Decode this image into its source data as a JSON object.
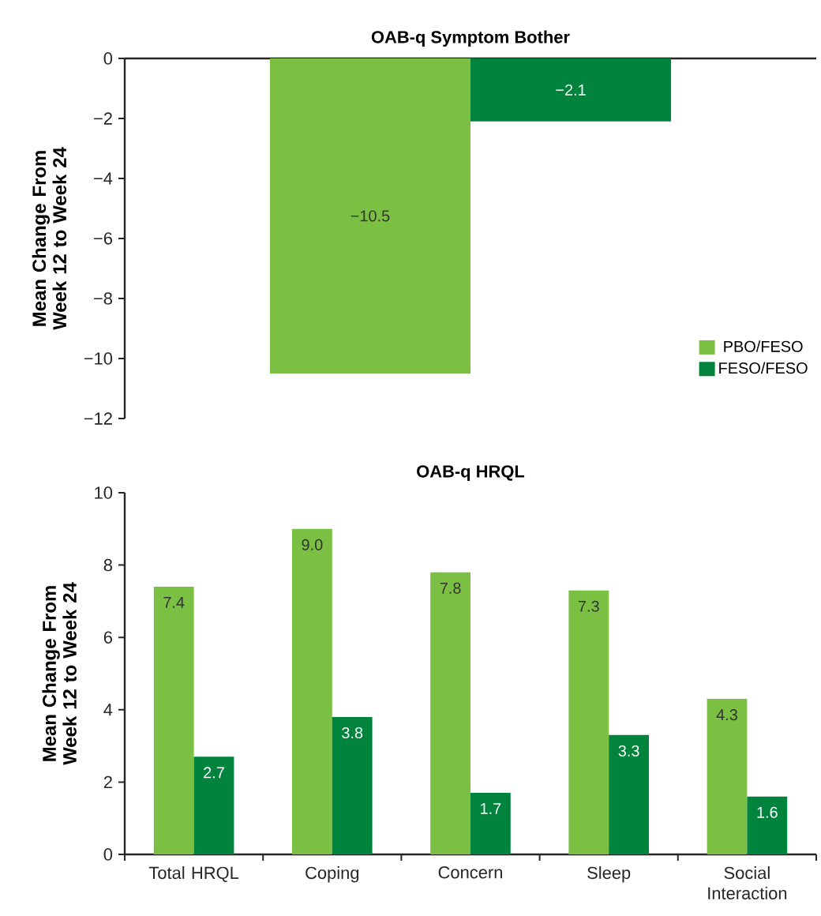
{
  "chart_data": [
    {
      "type": "bar",
      "title": "OAB-q Symptom Bother",
      "ylabel": "Mean Change From Week 12 to Week 24",
      "categories": [
        null
      ],
      "series": [
        {
          "name": "PBO/FESO",
          "color": "#7bc043",
          "values": [
            -10.5
          ],
          "value_labels": [
            "−10.5"
          ]
        },
        {
          "name": "FESO/FESO",
          "color": "#00843d",
          "values": [
            -2.1
          ],
          "value_labels": [
            "−2.1"
          ]
        }
      ],
      "ylim": [
        -12,
        0
      ],
      "yticks": [
        {
          "value": -12,
          "label": "−12"
        },
        {
          "value": -10,
          "label": "−10"
        },
        {
          "value": -8,
          "label": "−8"
        },
        {
          "value": -6,
          "label": "−6"
        },
        {
          "value": -4,
          "label": "−4"
        },
        {
          "value": -2,
          "label": "−2"
        },
        0
      ],
      "legend": "bottom right"
    },
    {
      "type": "bar",
      "title": "OAB-q HRQL",
      "ylabel": "Mean Change From Week 12 to Week 24",
      "categories": [
        "Total HRQL",
        "Coping",
        "Concern",
        "Sleep",
        "Social Interaction"
      ],
      "series": [
        {
          "color": "#7bc043",
          "values": [
            7.4,
            9.0,
            7.8,
            7.3,
            4.3
          ],
          "value_labels": [
            "7.4",
            "9.0",
            "7.8",
            "7.3",
            "4.3"
          ]
        },
        {
          "color": "#00843d",
          "values": [
            2.7,
            3.8,
            1.7,
            3.3,
            1.6
          ],
          "value_labels": [
            "2.7",
            "3.8",
            "1.7",
            "3.3",
            "1.6"
          ]
        }
      ],
      "ylim": [
        0,
        10
      ],
      "yticks": [
        0,
        2,
        4,
        6,
        8,
        10
      ]
    }
  ]
}
